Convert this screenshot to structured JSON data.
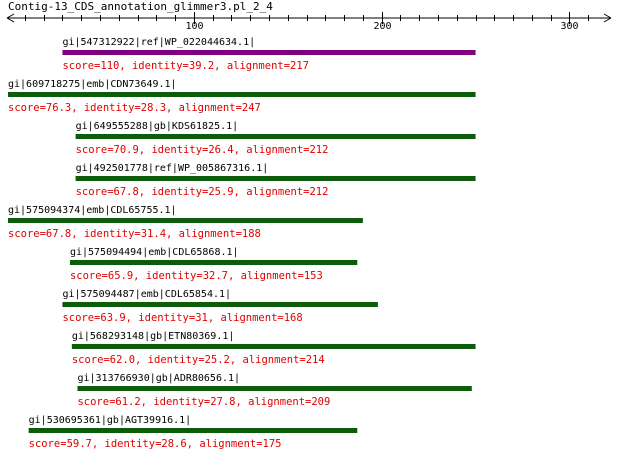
{
  "title": "Contig-13_CDS_annotation_glimmer3.pl_2_4",
  "axis": {
    "min": 1,
    "max": 320,
    "ticks": [
      "100",
      "200",
      "300"
    ],
    "tick_values": [
      100,
      200,
      300
    ],
    "minor_step": 10
  },
  "colors": {
    "best_hit": "#800080",
    "hit": "#0b5c0b",
    "score_text": "#e00000"
  },
  "hits": [
    {
      "label": "gi|547312922|ref|WP_022044634.1|",
      "score": "score=110, identity=39.2, alignment=217",
      "start": 30,
      "end": 250,
      "best": true
    },
    {
      "label": "gi|609718275|emb|CDN73649.1|",
      "score": "score=76.3, identity=28.3, alignment=247",
      "start": 1,
      "end": 250,
      "best": false
    },
    {
      "label": "gi|649555288|gb|KDS61825.1|",
      "score": "score=70.9, identity=26.4, alignment=212",
      "start": 37,
      "end": 250,
      "best": false
    },
    {
      "label": "gi|492501778|ref|WP_005867316.1|",
      "score": "score=67.8, identity=25.9, alignment=212",
      "start": 37,
      "end": 250,
      "best": false
    },
    {
      "label": "gi|575094374|emb|CDL65755.1|",
      "score": "score=67.8, identity=31.4, alignment=188",
      "start": 1,
      "end": 190,
      "best": false
    },
    {
      "label": "gi|575094494|emb|CDL65868.1|",
      "score": "score=65.9, identity=32.7, alignment=153",
      "start": 34,
      "end": 187,
      "best": false
    },
    {
      "label": "gi|575094487|emb|CDL65854.1|",
      "score": "score=63.9, identity=31, alignment=168",
      "start": 30,
      "end": 198,
      "best": false
    },
    {
      "label": "gi|568293148|gb|ETN80369.1|",
      "score": "score=62.0, identity=25.2, alignment=214",
      "start": 35,
      "end": 250,
      "best": false
    },
    {
      "label": "gi|313766930|gb|ADR80656.1|",
      "score": "score=61.2, identity=27.8, alignment=209",
      "start": 38,
      "end": 248,
      "best": false
    },
    {
      "label": "gi|530695361|gb|AGT39916.1|",
      "score": "score=59.7, identity=28.6, alignment=175",
      "start": 12,
      "end": 187,
      "best": false
    }
  ]
}
